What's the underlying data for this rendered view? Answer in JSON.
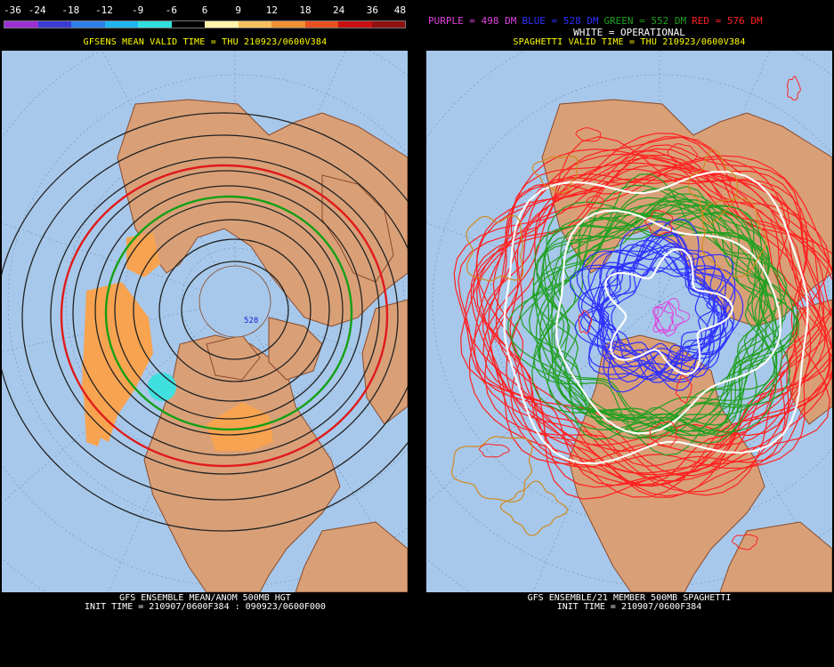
{
  "left_panel": {
    "legend": {
      "labels": [
        "-36",
        "-24",
        "-18",
        "-12",
        "-9",
        "-6",
        "6",
        "9",
        "12",
        "18",
        "24",
        "36",
        "48"
      ],
      "colors": [
        "#9b30d0",
        "#3b3bd6",
        "#2c7fe8",
        "#1fb5f0",
        "#30e0e0",
        "#000000",
        "#fff4a8",
        "#f6c060",
        "#f09030",
        "#e85020",
        "#c81010",
        "#901010"
      ]
    },
    "subtitle": "GFSENS MEAN VALID TIME = THU 210923/0600V384",
    "footer_line1": "GFS ENSEMBLE MEAN/ANOM 500MB HGT",
    "footer_line2": "INIT TIME = 210907/0600F384 : 090923/0600F000",
    "map_label": "528"
  },
  "right_panel": {
    "header_items": [
      {
        "text": "PURPLE = 498 DM",
        "color": "#e040e0"
      },
      {
        "text": "BLUE = 528 DM",
        "color": "#3030ff"
      },
      {
        "text": "GREEN = 552 DM",
        "color": "#20a020"
      },
      {
        "text": "RED = 576 DM",
        "color": "#ff2020"
      }
    ],
    "header_line2": "WHITE = OPERATIONAL",
    "subtitle": "SPAGHETTI VALID TIME = THU 210923/0600V384",
    "footer_line1": "GFS ENSEMBLE/21 MEMBER 500MB SPAGHETTI",
    "footer_line2": "INIT TIME = 210907/0600F384"
  },
  "colors": {
    "ocean": "#a7c8ea",
    "land": "#d9a078",
    "land_border": "#8a4a2a",
    "contour": "#222222",
    "anomaly_pos": "#f7a350",
    "anomaly_neg": "#40e0e0"
  }
}
